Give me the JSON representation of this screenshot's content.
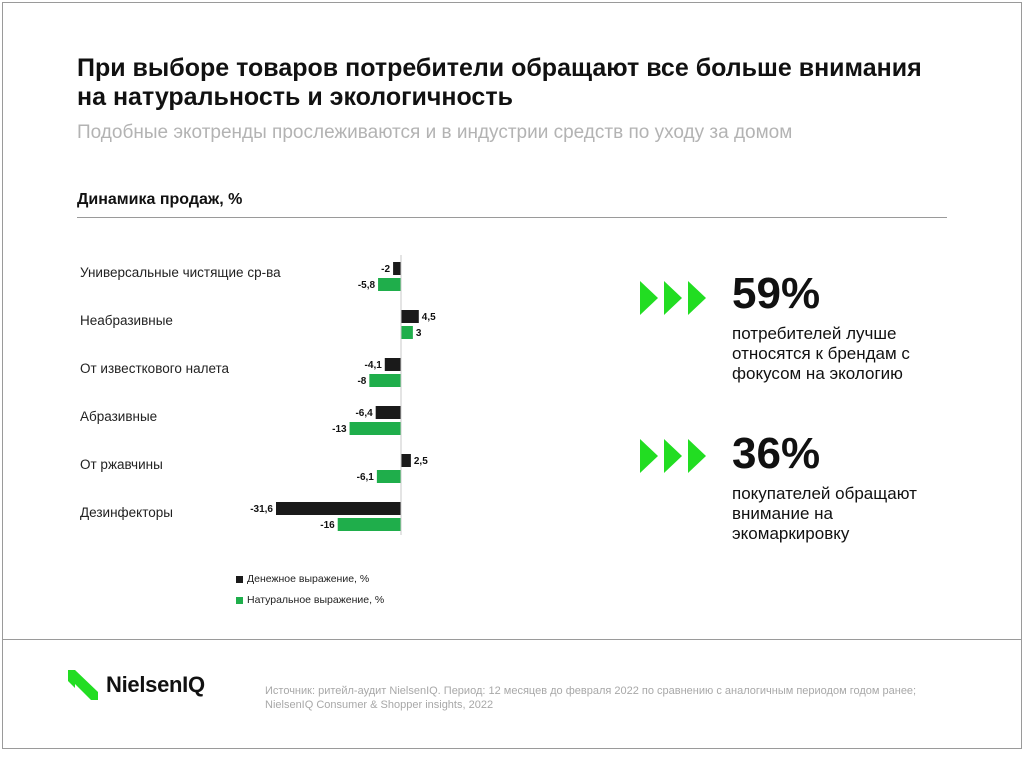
{
  "header": {
    "title": "При выборе товаров потребители обращают все больше внимания на натуральность и экологичность",
    "subtitle": "Подобные экотренды прослеживаются и в индустрии средств по уходу за домом"
  },
  "chart_section": {
    "title": "Динамика продаж, %"
  },
  "chart_data": {
    "type": "bar",
    "orientation": "horizontal",
    "categories": [
      "Универсальные чистящие ср-ва",
      "Неабразивные",
      "От известкового налета",
      "Абразивные",
      "От ржавчины",
      "Дезинфекторы"
    ],
    "series": [
      {
        "name": "Денежное выражение, %",
        "color": "#1a1a1a",
        "values": [
          -2,
          4.5,
          -4.1,
          -6.4,
          2.5,
          -31.6
        ],
        "labels": [
          "-2",
          "4,5",
          "-4,1",
          "-6,4",
          "2,5",
          "-31,6"
        ]
      },
      {
        "name": "Натуральное выражение, %",
        "color": "#1fae4b",
        "values": [
          -5.8,
          3,
          -8,
          -13,
          -6.1,
          -16
        ],
        "labels": [
          "-5,8",
          "3",
          "-8",
          "-13",
          "-6,1",
          "-16"
        ]
      }
    ],
    "legend_position": "bottom",
    "grid": false
  },
  "stats": [
    {
      "value": "59%",
      "text": "потребителей лучше относятся к брендам с фокусом на экологию"
    },
    {
      "value": "36%",
      "text": "покупателей обращают внимание на экомаркировку"
    }
  ],
  "colors": {
    "accent": "#22dd22",
    "dark": "#1a1a1a",
    "green": "#1fae4b"
  },
  "footer": {
    "logo": "NielsenIQ",
    "source": "Источник: ритейл-аудит NielsenIQ. Период: 12 месяцев до февраля 2022 по сравнению с аналогичным периодом годом ранее; NielsenIQ Consumer & Shopper insights, 2022"
  }
}
